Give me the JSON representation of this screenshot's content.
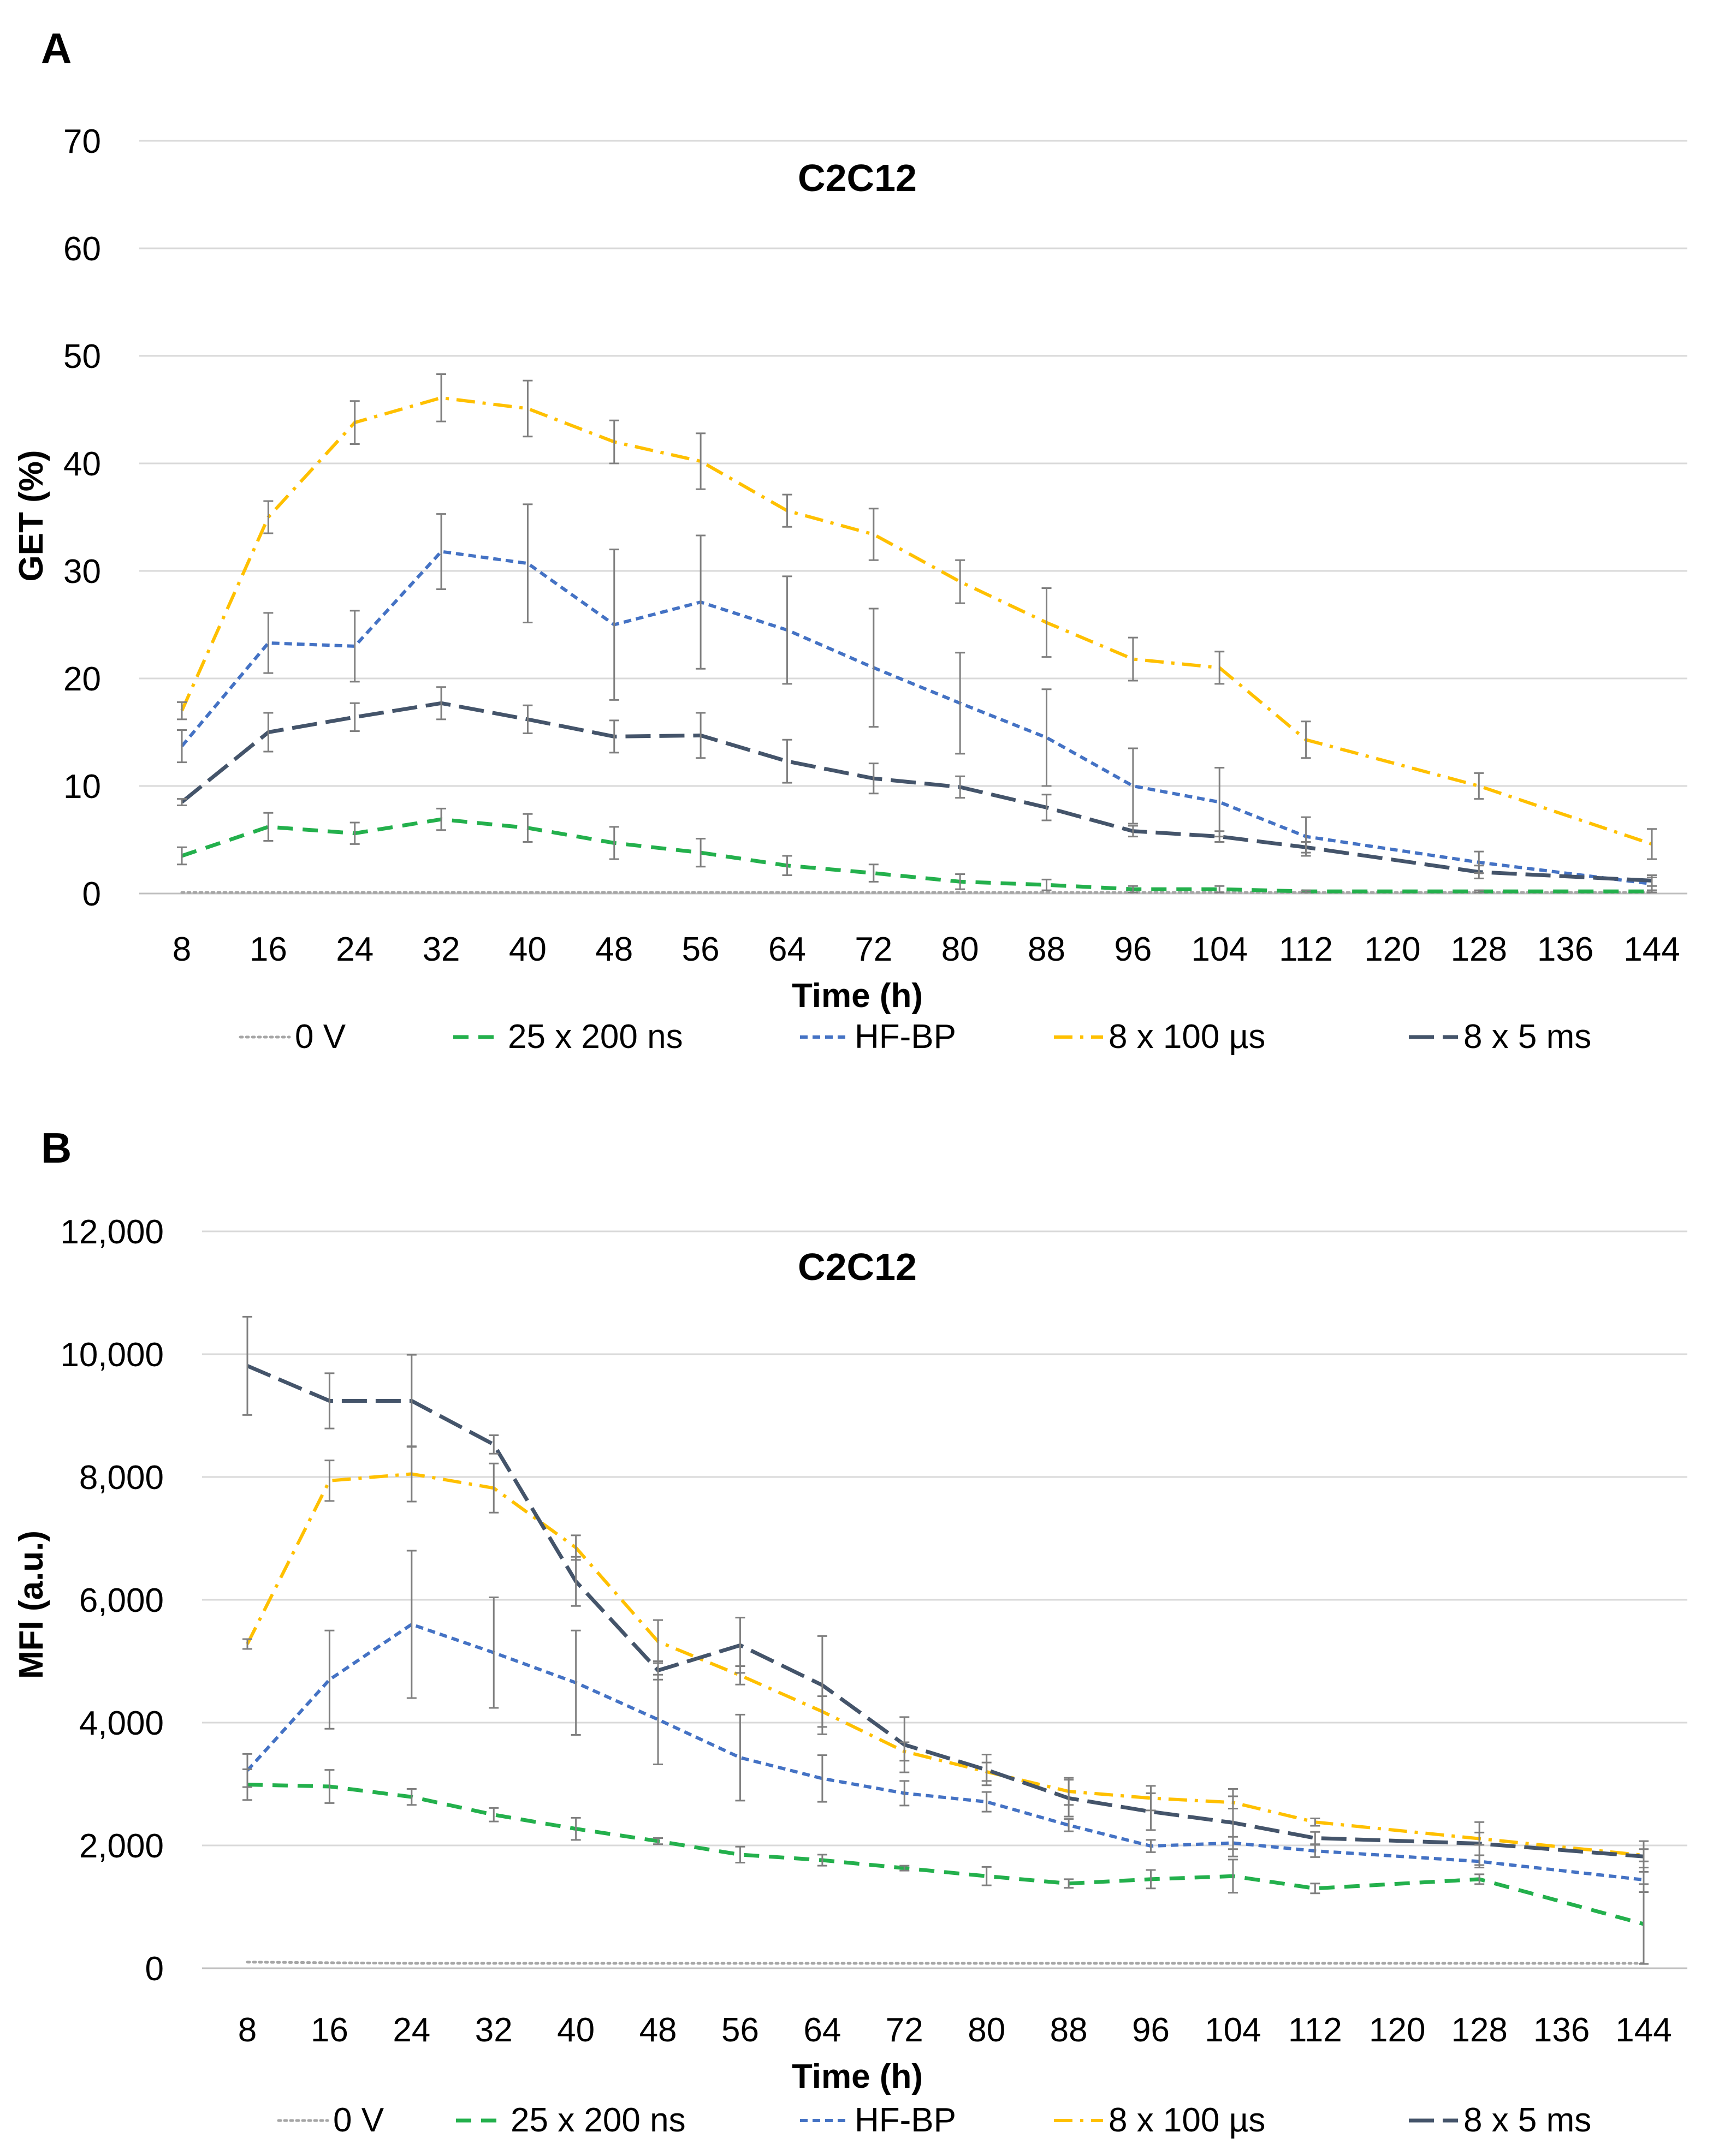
{
  "panels": [
    {
      "letter": "A"
    },
    {
      "letter": "B"
    }
  ],
  "colors": {
    "s0": "#a6a6a6",
    "s1": "#23b04c",
    "s2": "#4472c4",
    "s3": "#ffc000",
    "s4": "#44546a",
    "grid": "#d9d9d9",
    "errbar": "#7f7f7f",
    "text": "#000000"
  },
  "chart_data": [
    {
      "type": "line",
      "title": "C2C12",
      "xlabel": "Time (h)",
      "ylabel": "GET (%)",
      "categories": [
        "8",
        "16",
        "24",
        "32",
        "40",
        "48",
        "56",
        "64",
        "72",
        "80",
        "88",
        "96",
        "104",
        "112",
        "120",
        "128",
        "136",
        "144"
      ],
      "ylim": [
        0,
        70
      ],
      "yticks": [
        "0",
        "10",
        "20",
        "30",
        "40",
        "50",
        "60",
        "70"
      ],
      "grid": true,
      "legend_position": "bottom",
      "series": [
        {
          "name": "0 V",
          "style": "dotted",
          "values": [
            0.1,
            0.1,
            0.1,
            0.1,
            0.1,
            0.1,
            0.1,
            0.1,
            0.1,
            0.1,
            0.1,
            0.1,
            0.1,
            0.1,
            0.1,
            0.1,
            0.1,
            0.1
          ],
          "errors": [
            0,
            0,
            0,
            0,
            0,
            0,
            0,
            0,
            0,
            0,
            0,
            0,
            0,
            0,
            0,
            0,
            0,
            0
          ]
        },
        {
          "name": "25 x 200 ns",
          "style": "dash",
          "values": [
            3.5,
            6.2,
            5.6,
            6.9,
            6.1,
            4.7,
            3.8,
            2.6,
            1.9,
            1.1,
            0.8,
            0.4,
            0.4,
            0.2,
            null,
            0.2,
            null,
            0.2
          ],
          "errors": [
            0.8,
            1.3,
            1.0,
            1.0,
            1.3,
            1.5,
            1.3,
            0.9,
            0.8,
            0.7,
            0.5,
            0.3,
            0.3,
            0.1,
            0,
            0.1,
            0,
            0.1
          ]
        },
        {
          "name": "HF-BP",
          "style": "shortdash",
          "values": [
            13.7,
            23.3,
            23.0,
            31.8,
            30.7,
            25.0,
            27.1,
            24.5,
            21.0,
            17.7,
            14.5,
            10.0,
            8.5,
            5.3,
            null,
            2.9,
            null,
            0.9
          ],
          "errors": [
            1.5,
            2.8,
            3.3,
            3.5,
            5.5,
            7.0,
            6.2,
            5.0,
            5.5,
            4.7,
            4.5,
            3.5,
            3.2,
            1.8,
            0,
            1.0,
            0,
            0.6
          ]
        },
        {
          "name": "8 x 100 µs",
          "style": "dashdot",
          "values": [
            17.0,
            35.0,
            43.8,
            46.1,
            45.1,
            42.0,
            40.2,
            35.6,
            33.4,
            29.0,
            25.2,
            21.8,
            21.0,
            14.3,
            null,
            10.0,
            null,
            4.6
          ],
          "errors": [
            0.8,
            1.5,
            2.0,
            2.2,
            2.6,
            2.0,
            2.6,
            1.5,
            2.4,
            2.0,
            3.2,
            2.0,
            1.5,
            1.7,
            0,
            1.2,
            0,
            1.4
          ]
        },
        {
          "name": "8 x 5 ms",
          "style": "longdash",
          "values": [
            8.5,
            15.0,
            16.4,
            17.7,
            16.2,
            14.6,
            14.7,
            12.3,
            10.7,
            9.9,
            8.0,
            5.8,
            5.3,
            4.3,
            null,
            2.0,
            null,
            1.2
          ],
          "errors": [
            0.3,
            1.8,
            1.3,
            1.5,
            1.3,
            1.5,
            2.1,
            2.0,
            1.4,
            1.0,
            1.2,
            0.5,
            0.5,
            0.5,
            0,
            0.6,
            0,
            0.5
          ]
        }
      ]
    },
    {
      "type": "line",
      "title": "C2C12",
      "xlabel": "Time (h)",
      "ylabel": "MFI (a.u.)",
      "categories": [
        "8",
        "16",
        "24",
        "32",
        "40",
        "48",
        "56",
        "64",
        "72",
        "80",
        "88",
        "96",
        "104",
        "112",
        "120",
        "128",
        "136",
        "144"
      ],
      "ylim": [
        0,
        12000
      ],
      "yticks": [
        "0",
        "2,000",
        "4,000",
        "6,000",
        "8,000",
        "10,000",
        "12,000"
      ],
      "grid": true,
      "legend_position": "bottom",
      "series": [
        {
          "name": "0 V",
          "style": "dotted",
          "values": [
            100,
            90,
            80,
            80,
            80,
            80,
            80,
            80,
            80,
            80,
            80,
            80,
            80,
            80,
            null,
            80,
            null,
            80
          ],
          "errors": [
            0,
            0,
            0,
            0,
            0,
            0,
            0,
            0,
            0,
            0,
            0,
            0,
            0,
            0,
            0,
            0,
            0,
            0
          ]
        },
        {
          "name": "25 x 200 ns",
          "style": "dash",
          "values": [
            2990,
            2960,
            2790,
            2500,
            2270,
            2070,
            1850,
            1760,
            1630,
            1500,
            1380,
            1450,
            1500,
            1300,
            null,
            1450,
            null,
            720
          ],
          "errors": [
            250,
            270,
            130,
            110,
            180,
            50,
            130,
            90,
            40,
            150,
            70,
            150,
            270,
            80,
            0,
            80,
            0,
            650
          ]
        },
        {
          "name": "HF-BP",
          "style": "shortdash",
          "values": [
            3220,
            4700,
            5600,
            5140,
            4650,
            4050,
            3430,
            3090,
            2850,
            2710,
            2330,
            1990,
            2040,
            1910,
            null,
            1740,
            null,
            1440
          ],
          "errors": [
            270,
            800,
            1200,
            900,
            850,
            730,
            700,
            380,
            200,
            160,
            100,
            100,
            100,
            100,
            0,
            100,
            0,
            200
          ]
        },
        {
          "name": "8 x 100 µs",
          "style": "dashdot",
          "values": [
            5280,
            7940,
            8050,
            7820,
            6850,
            5320,
            4770,
            4180,
            3530,
            3200,
            2880,
            2770,
            2700,
            2380,
            null,
            2110,
            null,
            1840
          ],
          "errors": [
            80,
            330,
            450,
            400,
            200,
            350,
            150,
            250,
            150,
            150,
            220,
            200,
            100,
            60,
            0,
            100,
            0,
            100
          ]
        },
        {
          "name": "8 x 5 ms",
          "style": "longdash",
          "values": [
            9810,
            9240,
            9240,
            8530,
            6300,
            4850,
            5260,
            4610,
            3640,
            3230,
            2770,
            2550,
            2370,
            2120,
            null,
            2030,
            null,
            1820
          ],
          "errors": [
            800,
            450,
            750,
            150,
            400,
            150,
            450,
            800,
            450,
            250,
            300,
            300,
            550,
            100,
            0,
            350,
            0,
            250
          ]
        }
      ]
    }
  ]
}
